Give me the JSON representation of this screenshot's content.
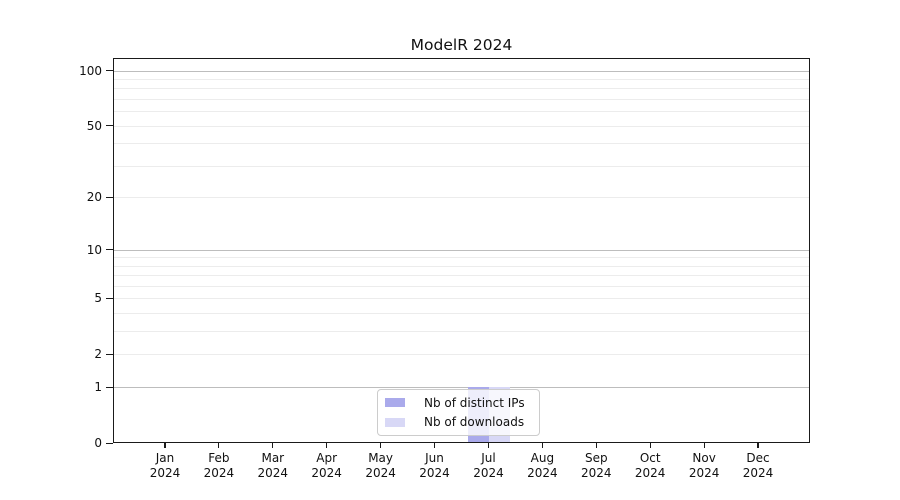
{
  "chart_data": {
    "type": "bar",
    "title": "ModelR 2024",
    "x": {
      "months": [
        "Jan",
        "Feb",
        "Mar",
        "Apr",
        "May",
        "Jun",
        "Jul",
        "Aug",
        "Sep",
        "Oct",
        "Nov",
        "Dec"
      ],
      "year": "2024"
    },
    "series": [
      {
        "name": "Nb of distinct IPs",
        "color": "#aaaaeb",
        "values": [
          0,
          0,
          0,
          0,
          0,
          0,
          1,
          0,
          0,
          0,
          0,
          0
        ]
      },
      {
        "name": "Nb of downloads",
        "color": "#d8d8f6",
        "values": [
          0,
          0,
          0,
          0,
          0,
          0,
          1,
          0,
          0,
          0,
          0,
          0
        ]
      }
    ],
    "y_axis": {
      "scale": "log1p",
      "tick_values": [
        0,
        1,
        2,
        5,
        10,
        20,
        50,
        100
      ],
      "major_gridlines": [
        1,
        10,
        100
      ],
      "minor_gridlines": [
        2,
        3,
        4,
        5,
        6,
        7,
        8,
        9,
        20,
        30,
        40,
        50,
        60,
        70,
        80,
        90
      ],
      "ylim": [
        0,
        117
      ]
    },
    "legend": {
      "position": "lower center"
    },
    "colors": {
      "major_grid": "#bdbdbd",
      "minor_grid": "#ececec",
      "spine": "#1a1a1a",
      "legend_border": "#cccccc"
    }
  }
}
